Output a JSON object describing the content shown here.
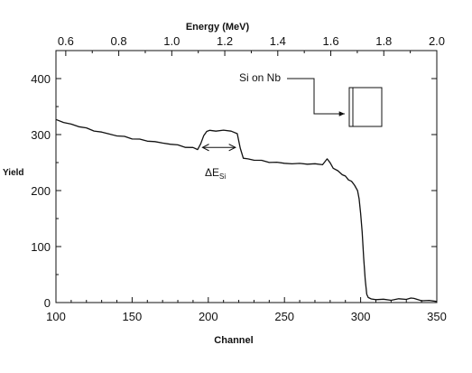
{
  "chart_data": {
    "type": "line",
    "title": "",
    "xlabel": "Channel",
    "ylabel": "Yield",
    "x2label": "Energy (MeV)",
    "xlim": [
      100,
      350
    ],
    "ylim": [
      0,
      450
    ],
    "x2lim": [
      0.563,
      2.0
    ],
    "xticks": [
      100,
      150,
      200,
      250,
      300,
      350
    ],
    "xtick_labels": [
      "100",
      "150",
      "200",
      "250",
      "300",
      "350"
    ],
    "yticks": [
      0,
      100,
      200,
      300,
      400
    ],
    "ytick_labels": [
      "0",
      "100",
      "200",
      "300",
      "400"
    ],
    "x2ticks": [
      0.6,
      0.8,
      1.0,
      1.2,
      1.4,
      1.6,
      1.8,
      2.0
    ],
    "x2tick_labels": [
      "0.6",
      "0.8",
      "1.0",
      "1.2",
      "1.4",
      "1.6",
      "1.8",
      "2.0"
    ],
    "grid": false,
    "series": [
      {
        "color": "#111111",
        "x": [
          100,
          105,
          110,
          115,
          120,
          125,
          130,
          135,
          140,
          145,
          150,
          155,
          160,
          165,
          170,
          175,
          180,
          185,
          190,
          193,
          195,
          197,
          199,
          201,
          205,
          210,
          215,
          219,
          221,
          223,
          226,
          230,
          235,
          240,
          245,
          250,
          255,
          260,
          265,
          270,
          275,
          278,
          280,
          282,
          285,
          288,
          290,
          292,
          294,
          296,
          298,
          299,
          300,
          301,
          302,
          303,
          304,
          305,
          307,
          310,
          315,
          320,
          325,
          330,
          333,
          335,
          340,
          345,
          350
        ],
        "y": [
          327,
          322,
          318,
          315,
          311,
          307,
          304,
          301,
          298,
          296,
          293,
          291,
          289,
          287,
          285,
          283,
          281,
          278,
          276,
          274,
          283,
          298,
          306,
          307,
          307,
          307,
          307,
          301,
          276,
          258,
          256,
          255,
          253,
          251,
          250,
          249,
          248,
          248,
          248,
          247,
          247,
          256,
          250,
          240,
          235,
          229,
          225,
          220,
          216,
          210,
          200,
          185,
          160,
          125,
          80,
          40,
          15,
          9,
          6,
          6,
          5,
          5,
          6,
          6,
          8,
          7,
          4,
          3,
          2
        ]
      }
    ],
    "annotations": [
      {
        "text_main": "ΔE",
        "text_sub": "Si",
        "x_from": 195,
        "x_to": 219,
        "y": 277
      },
      {
        "text": "Si on Nb"
      }
    ]
  }
}
